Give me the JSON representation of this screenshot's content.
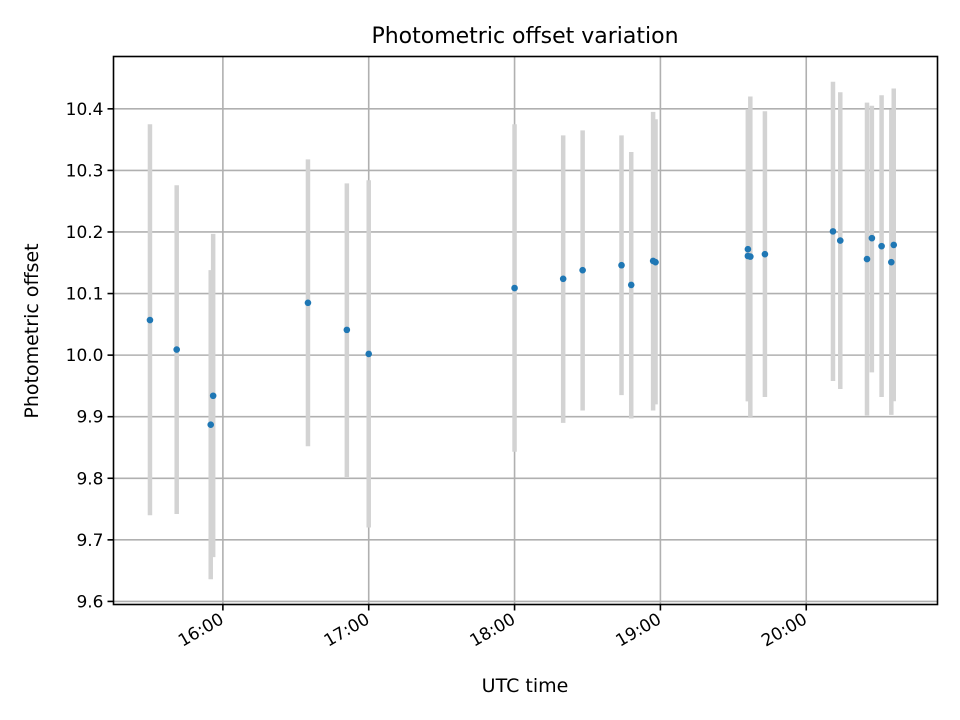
{
  "chart_data": {
    "type": "scatter",
    "title": "Photometric offset variation",
    "xlabel": "UTC time",
    "ylabel": "Photometric offset",
    "x_axis_type": "time",
    "xlim": [
      "15:15",
      "20:54"
    ],
    "ylim": [
      9.595,
      10.485
    ],
    "xticks": [
      "16:00",
      "17:00",
      "18:00",
      "19:00",
      "20:00"
    ],
    "yticks": [
      "9.6",
      "9.7",
      "9.8",
      "9.9",
      "10.0",
      "10.1",
      "10.2",
      "10.3",
      "10.4"
    ],
    "grid": true,
    "point_color": "#1f77b4",
    "errorbar_color": "#d3d3d3",
    "series": [
      {
        "points": [
          {
            "time": "15:30",
            "y": 10.057,
            "lo": 9.74,
            "hi": 10.375
          },
          {
            "time": "15:41",
            "y": 10.009,
            "lo": 9.742,
            "hi": 10.276
          },
          {
            "time": "15:55",
            "y": 9.887,
            "lo": 9.636,
            "hi": 10.138
          },
          {
            "time": "15:56",
            "y": 9.934,
            "lo": 9.672,
            "hi": 10.197
          },
          {
            "time": "16:35",
            "y": 10.085,
            "lo": 9.852,
            "hi": 10.318
          },
          {
            "time": "16:51",
            "y": 10.041,
            "lo": 9.802,
            "hi": 10.279
          },
          {
            "time": "17:00",
            "y": 10.002,
            "lo": 9.72,
            "hi": 10.284
          },
          {
            "time": "18:00",
            "y": 10.109,
            "lo": 9.843,
            "hi": 10.375
          },
          {
            "time": "18:20",
            "y": 10.124,
            "lo": 9.89,
            "hi": 10.357
          },
          {
            "time": "18:28",
            "y": 10.138,
            "lo": 9.91,
            "hi": 10.365
          },
          {
            "time": "18:44",
            "y": 10.146,
            "lo": 9.935,
            "hi": 10.357
          },
          {
            "time": "18:48",
            "y": 10.114,
            "lo": 9.897,
            "hi": 10.33
          },
          {
            "time": "18:57",
            "y": 10.153,
            "lo": 9.91,
            "hi": 10.395
          },
          {
            "time": "18:58",
            "y": 10.151,
            "lo": 9.92,
            "hi": 10.383
          },
          {
            "time": "19:36",
            "y": 10.172,
            "lo": 9.925,
            "hi": 10.398
          },
          {
            "time": "19:36",
            "y": 10.161,
            "lo": 9.925,
            "hi": 10.398
          },
          {
            "time": "19:37",
            "y": 10.16,
            "lo": 9.9,
            "hi": 10.42
          },
          {
            "time": "19:43",
            "y": 10.164,
            "lo": 9.932,
            "hi": 10.396
          },
          {
            "time": "20:11",
            "y": 10.201,
            "lo": 9.958,
            "hi": 10.444
          },
          {
            "time": "20:14",
            "y": 10.186,
            "lo": 9.945,
            "hi": 10.427
          },
          {
            "time": "20:25",
            "y": 10.156,
            "lo": 9.902,
            "hi": 10.41
          },
          {
            "time": "20:27",
            "y": 10.19,
            "lo": 9.972,
            "hi": 10.405
          },
          {
            "time": "20:31",
            "y": 10.177,
            "lo": 9.932,
            "hi": 10.422
          },
          {
            "time": "20:35",
            "y": 10.151,
            "lo": 9.903,
            "hi": 10.399
          },
          {
            "time": "20:36",
            "y": 10.179,
            "lo": 9.925,
            "hi": 10.433
          }
        ]
      }
    ]
  }
}
